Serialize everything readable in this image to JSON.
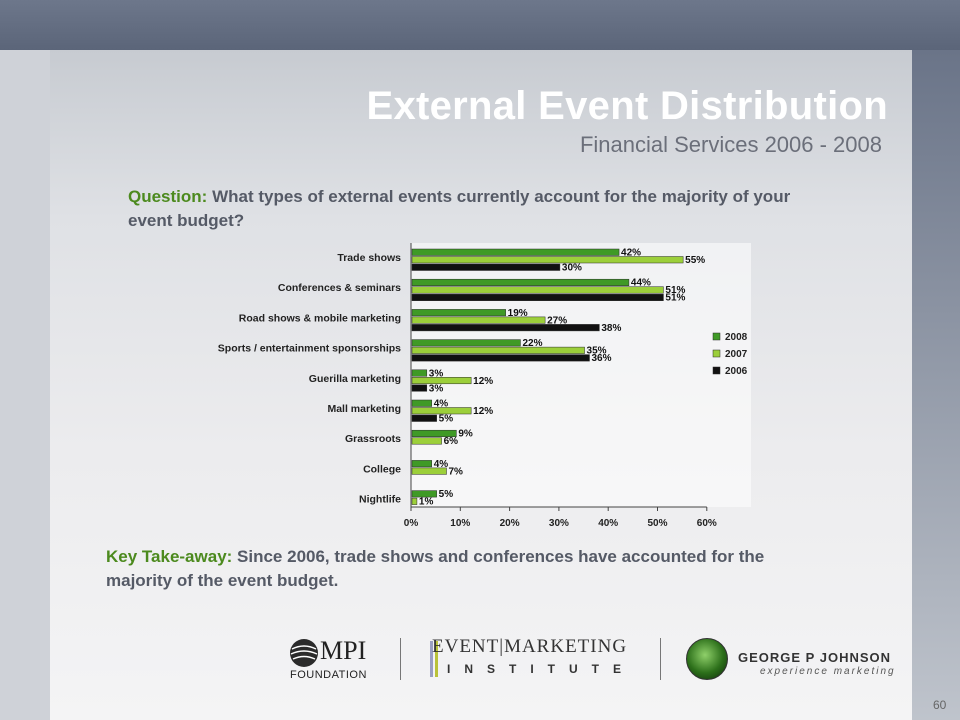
{
  "slide": {
    "title": "External Event Distribution",
    "subtitle": "Financial Services 2006 - 2008",
    "question_label": "Question:",
    "question_text": " What types of external events currently account for the majority of your event budget?",
    "takeaway_label": "Key Take-away:",
    "takeaway_text": " Since 2006, trade shows and conferences have accounted for the majority of the event budget.",
    "page_number": "60"
  },
  "logos": {
    "mpi": "MPI",
    "mpi_sub": "FOUNDATION",
    "emi_top": "EVENT|MARKETING",
    "emi_bottom": "INSTITUTE",
    "gpj_name": "GEORGE P JOHNSON",
    "gpj_sub": "experience marketing"
  },
  "colors": {
    "2008": "#3f9a26",
    "2007": "#9ccf3a",
    "2006": "#111111",
    "accent_text": "#4c8a1e"
  },
  "chart_data": {
    "type": "bar",
    "orientation": "horizontal",
    "categories": [
      "Trade shows",
      "Conferences & seminars",
      "Road shows & mobile marketing",
      "Sports / entertainment sponsorships",
      "Guerilla marketing",
      "Mall marketing",
      "Grassroots",
      "College",
      "Nightlife"
    ],
    "series": [
      {
        "name": "2008",
        "values": [
          42,
          44,
          19,
          22,
          3,
          4,
          9,
          4,
          5
        ]
      },
      {
        "name": "2007",
        "values": [
          55,
          51,
          27,
          35,
          12,
          12,
          6,
          7,
          1
        ]
      },
      {
        "name": "2006",
        "values": [
          30,
          51,
          38,
          36,
          3,
          5,
          null,
          null,
          null
        ]
      }
    ],
    "value_labels": [
      [
        "42%",
        "44%",
        "19%",
        "22%",
        "3%",
        "4%",
        "9%",
        "4%",
        "5%"
      ],
      [
        "55%",
        "51%",
        "27%",
        "35%",
        "12%",
        "12%",
        "6%",
        "7%",
        "1%"
      ],
      [
        "30%",
        "51%",
        "38%",
        "36%",
        "3%",
        "5%",
        null,
        null,
        null
      ]
    ],
    "xlim": [
      0,
      60
    ],
    "xticks": [
      "0%",
      "10%",
      "20%",
      "30%",
      "40%",
      "50%",
      "60%"
    ],
    "legend_position": "right",
    "grid": false
  }
}
